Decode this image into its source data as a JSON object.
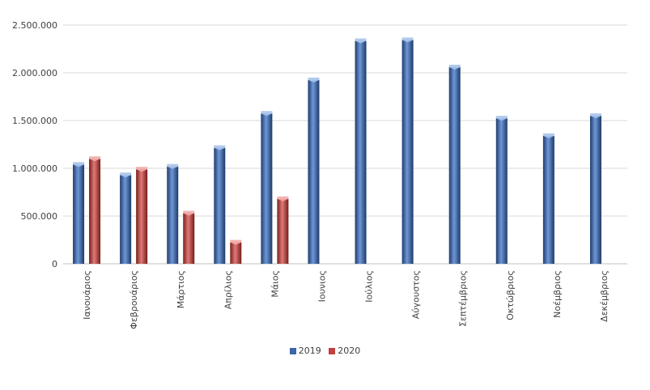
{
  "chart_data": {
    "type": "bar",
    "categories": [
      "Ιανουάριος",
      "Φεβρουάριος",
      "Μάρτιος",
      "Απρίλιος",
      "Μάιος",
      "Ιουνιος",
      "Ιούλιος",
      "Αύγουστος",
      "Σεπτέμβριος",
      "Οκτώβριος",
      "Νοέμβριος",
      "Δεκέμβριος"
    ],
    "series": [
      {
        "name": "2019",
        "color": "#3b66a8",
        "values": [
          1065000,
          955000,
          1045000,
          1240000,
          1600000,
          1950000,
          2360000,
          2370000,
          2085000,
          1550000,
          1365000,
          1575000
        ]
      },
      {
        "name": "2020",
        "color": "#c0413f",
        "values": [
          1125000,
          1015000,
          555000,
          250000,
          705000,
          null,
          null,
          null,
          null,
          null,
          null,
          null
        ]
      }
    ],
    "yticks": [
      "0",
      "500.000",
      "1.000.000",
      "1.500.000",
      "2.000.000",
      "2.500.000"
    ],
    "ylim": [
      0,
      2500000
    ],
    "grid": true,
    "legend": "bottom"
  }
}
